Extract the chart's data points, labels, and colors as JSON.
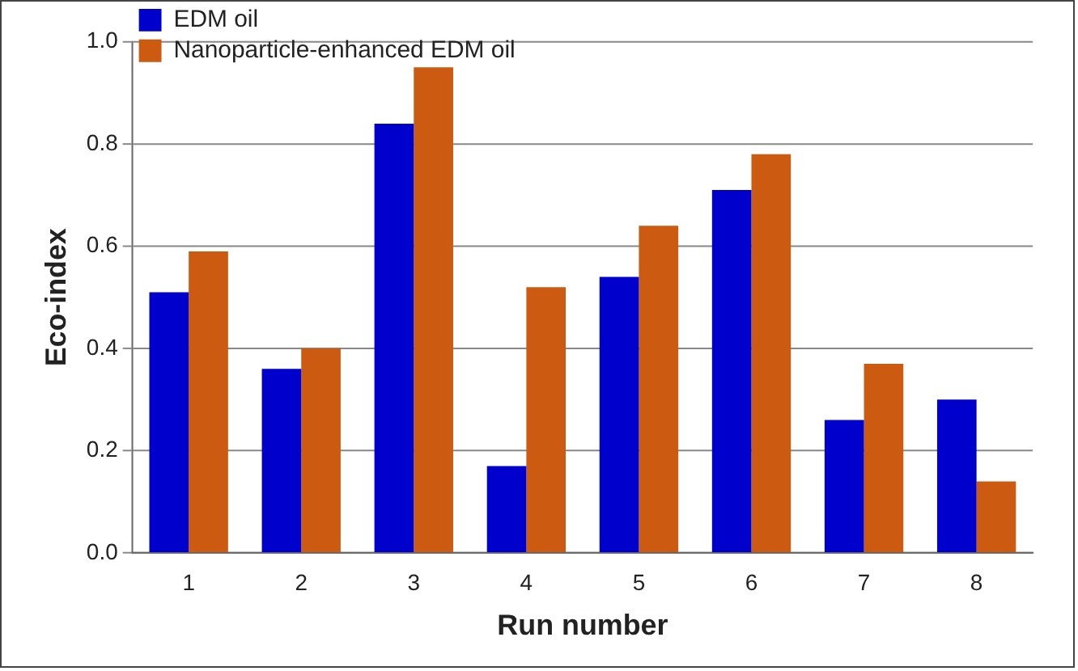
{
  "chart_data": {
    "type": "bar",
    "xlabel": "Run number",
    "ylabel": "Eco-index",
    "categories": [
      "1",
      "2",
      "3",
      "4",
      "5",
      "6",
      "7",
      "8"
    ],
    "series": [
      {
        "name": "EDM oil",
        "color": "#0000cc",
        "values": [
          0.51,
          0.36,
          0.84,
          0.17,
          0.54,
          0.71,
          0.26,
          0.3
        ]
      },
      {
        "name": "Nanoparticle-enhanced EDM oil",
        "color": "#cc5a10",
        "values": [
          0.59,
          0.4,
          0.95,
          0.52,
          0.64,
          0.78,
          0.37,
          0.14
        ]
      }
    ],
    "ylim": [
      0,
      1.0
    ],
    "yticks": [
      {
        "value": 0,
        "label": "0.0"
      },
      {
        "value": 0.2,
        "label": "0.2"
      },
      {
        "value": 0.4,
        "label": "0.4"
      },
      {
        "value": 0.6,
        "label": "0.6"
      },
      {
        "value": 0.8,
        "label": "0.8"
      },
      {
        "value": 1.0,
        "label": "1.0"
      }
    ],
    "grid": "y",
    "legend": "top left"
  }
}
